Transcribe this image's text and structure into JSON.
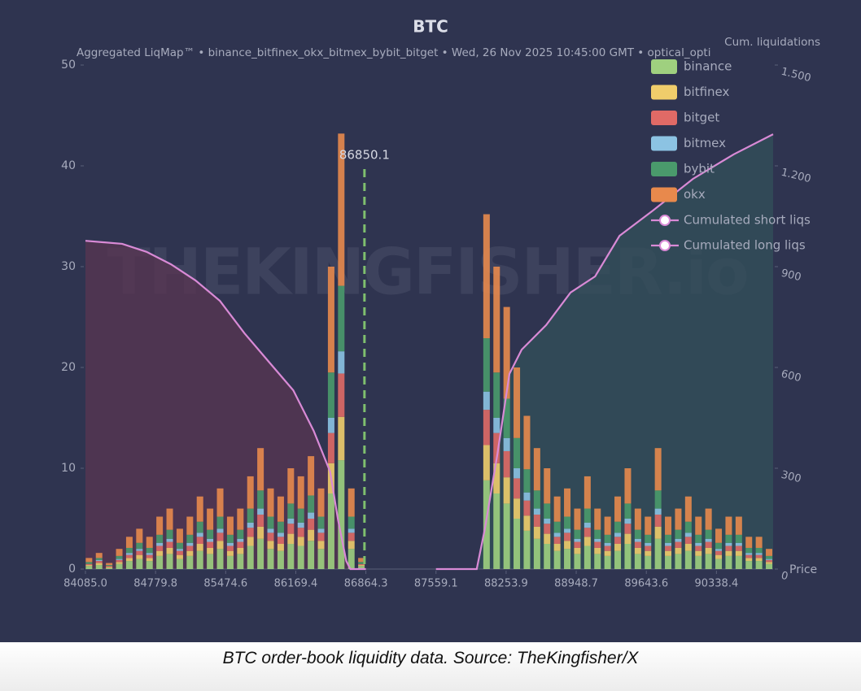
{
  "chart_data": {
    "type": "bar",
    "title": "BTC",
    "subtitle": "Aggregated LiqMap™  •  binance_bitfinex_okx_bitmex_bybit_bitget  •  Wed, 26 Nov 2025 10:45:00 GMT  •  optical_opti",
    "watermark": "THEKINGFISHER.io",
    "caption": "BTC order-book liquidity data. Source: TheKingfisher/X",
    "xlabel": "Price",
    "y2label": "Cum. liquidations",
    "xlim": [
      84085.0,
      90900
    ],
    "xticks": [
      {
        "value": 84085.0,
        "label": "84085.0"
      },
      84779.8,
      85474.6,
      86169.4,
      86864.3,
      87559.1,
      88253.9,
      88948.7,
      89643.6,
      90338.4
    ],
    "ylim": [
      0,
      50
    ],
    "yticks": [
      0,
      10,
      20,
      30,
      40,
      50
    ],
    "y2lim": [
      0,
      1500
    ],
    "y2ticks": [
      0,
      300,
      600,
      900,
      {
        "value": 1200,
        "label": "1.200"
      },
      {
        "value": 1500,
        "label": "1.500"
      }
    ],
    "legend": "top-right",
    "marker": {
      "value": 86850.1,
      "color": "#7fbf6e"
    },
    "x": [
      84120,
      84220,
      84320,
      84420,
      84520,
      84620,
      84720,
      84820,
      84920,
      85020,
      85120,
      85220,
      85320,
      85420,
      85520,
      85620,
      85720,
      85820,
      85920,
      86020,
      86120,
      86220,
      86320,
      86420,
      86520,
      86620,
      86720,
      86820,
      88060,
      88160,
      88260,
      88360,
      88460,
      88560,
      88660,
      88760,
      88860,
      88960,
      89060,
      89160,
      89260,
      89360,
      89460,
      89560,
      89660,
      89760,
      89860,
      89960,
      90060,
      90160,
      90260,
      90360,
      90460,
      90560,
      90660,
      90760,
      90860
    ],
    "series": [
      {
        "name": "binance",
        "color": "#9fd07f",
        "values": [
          0.3,
          0.4,
          0.1,
          0.5,
          0.8,
          1,
          0.8,
          1.3,
          1.5,
          1,
          1.3,
          1.8,
          1.5,
          2,
          1.3,
          1.5,
          2.3,
          3,
          2,
          1.8,
          2.5,
          2.3,
          2.8,
          2,
          7.5,
          10.8,
          2,
          0.3,
          8.8,
          7.5,
          6.5,
          5,
          3.8,
          3,
          2.5,
          1.8,
          2,
          1.5,
          2.3,
          1.5,
          1.3,
          1.8,
          2.5,
          1.5,
          1.3,
          3,
          1.3,
          1.5,
          1.8,
          1.3,
          1.5,
          1,
          1.3,
          1.3,
          0.8,
          0.8,
          0.5
        ]
      },
      {
        "name": "bitfinex",
        "color": "#f0cd6b",
        "values": [
          0.1,
          0.2,
          0.1,
          0.2,
          0.3,
          0.4,
          0.3,
          0.5,
          0.6,
          0.4,
          0.5,
          0.7,
          0.6,
          0.8,
          0.5,
          0.6,
          0.9,
          1.2,
          0.8,
          0.7,
          1,
          0.9,
          1.1,
          0.8,
          3,
          4.3,
          0.8,
          0.1,
          3.5,
          3,
          2.6,
          2,
          1.5,
          1.2,
          1,
          0.7,
          0.8,
          0.6,
          0.9,
          0.6,
          0.5,
          0.7,
          1,
          0.6,
          0.5,
          1.2,
          0.5,
          0.6,
          0.7,
          0.5,
          0.6,
          0.4,
          0.5,
          0.5,
          0.3,
          0.3,
          0.2
        ]
      },
      {
        "name": "bitget",
        "color": "#e06a66",
        "values": [
          0.1,
          0.2,
          0.1,
          0.2,
          0.3,
          0.4,
          0.3,
          0.5,
          0.6,
          0.4,
          0.5,
          0.7,
          0.6,
          0.8,
          0.5,
          0.6,
          0.9,
          1.2,
          0.8,
          0.7,
          1,
          0.9,
          1.1,
          0.8,
          3,
          4.3,
          0.8,
          0.1,
          3.5,
          3,
          2.6,
          2,
          1.5,
          1.2,
          1,
          0.7,
          0.8,
          0.6,
          0.9,
          0.6,
          0.5,
          0.7,
          1,
          0.6,
          0.5,
          1.2,
          0.5,
          0.6,
          0.7,
          0.5,
          0.6,
          0.4,
          0.5,
          0.5,
          0.3,
          0.3,
          0.2
        ]
      },
      {
        "name": "bitmex",
        "color": "#8cc3e3",
        "values": [
          0,
          0.1,
          0,
          0.1,
          0.2,
          0.2,
          0.2,
          0.3,
          0.3,
          0.2,
          0.3,
          0.4,
          0.3,
          0.4,
          0.3,
          0.3,
          0.5,
          0.6,
          0.4,
          0.4,
          0.5,
          0.5,
          0.6,
          0.4,
          1.5,
          2.2,
          0.4,
          0,
          1.8,
          1.5,
          1.3,
          1,
          0.8,
          0.6,
          0.5,
          0.4,
          0.4,
          0.3,
          0.5,
          0.3,
          0.3,
          0.4,
          0.5,
          0.3,
          0.3,
          0.6,
          0.3,
          0.3,
          0.4,
          0.3,
          0.3,
          0.2,
          0.3,
          0.3,
          0.2,
          0.2,
          0.1
        ]
      },
      {
        "name": "bybit",
        "color": "#4a9a6c",
        "values": [
          0.2,
          0.2,
          0.1,
          0.3,
          0.5,
          0.6,
          0.5,
          0.8,
          0.9,
          0.6,
          0.8,
          1.1,
          0.9,
          1.2,
          0.8,
          0.9,
          1.4,
          1.8,
          1.2,
          1.1,
          1.5,
          1.4,
          1.7,
          1.2,
          4.5,
          6.5,
          1.2,
          0.2,
          5.3,
          4.5,
          3.9,
          3,
          2.3,
          1.8,
          1.5,
          1.1,
          1.2,
          0.9,
          1.4,
          0.9,
          0.8,
          1.1,
          1.5,
          0.9,
          0.8,
          1.8,
          0.8,
          0.9,
          1.1,
          0.8,
          0.9,
          0.6,
          0.8,
          0.8,
          0.5,
          0.5,
          0.3
        ]
      },
      {
        "name": "okx",
        "color": "#e8894c",
        "values": [
          0.4,
          0.5,
          0.2,
          0.7,
          1.1,
          1.4,
          1.1,
          1.8,
          2.1,
          1.4,
          1.8,
          2.5,
          2.1,
          2.8,
          1.8,
          2.1,
          3.2,
          4.2,
          2.8,
          2.5,
          3.5,
          3.2,
          3.9,
          2.8,
          10.5,
          15.1,
          2.8,
          0.4,
          12.3,
          10.5,
          9.1,
          7,
          5.3,
          4.2,
          3.5,
          2.5,
          2.8,
          2.1,
          3.2,
          2.1,
          1.8,
          2.5,
          3.5,
          2.1,
          1.8,
          4.2,
          1.8,
          2.1,
          2.5,
          1.8,
          2.1,
          1.4,
          1.8,
          1.8,
          1.1,
          1.1,
          0.7
        ]
      }
    ],
    "lines": [
      {
        "name": "Cumulated short liqs",
        "color": "#d98ad6",
        "area_color": "#33505a",
        "axis": "y2",
        "x": [
          87559,
          87963,
          88044,
          88166,
          88287,
          88408,
          88651,
          88893,
          89136,
          89378,
          89701,
          90105,
          90509,
          90900
        ],
        "values": [
          0,
          0,
          121,
          339,
          581,
          653,
          726,
          823,
          871,
          992,
          1065,
          1161,
          1234,
          1294
        ]
      },
      {
        "name": "Cumulated long liqs",
        "color": "#d98ad6",
        "area_color": "#5a3652",
        "axis": "y2",
        "x": [
          84085,
          84449,
          84691,
          84933,
          85175,
          85418,
          85660,
          85902,
          86145,
          86347,
          86509,
          86589,
          86670,
          86710,
          86864
        ],
        "values": [
          977,
          968,
          944,
          907,
          859,
          798,
          702,
          617,
          532,
          411,
          290,
          145,
          24,
          0,
          0
        ]
      }
    ]
  }
}
